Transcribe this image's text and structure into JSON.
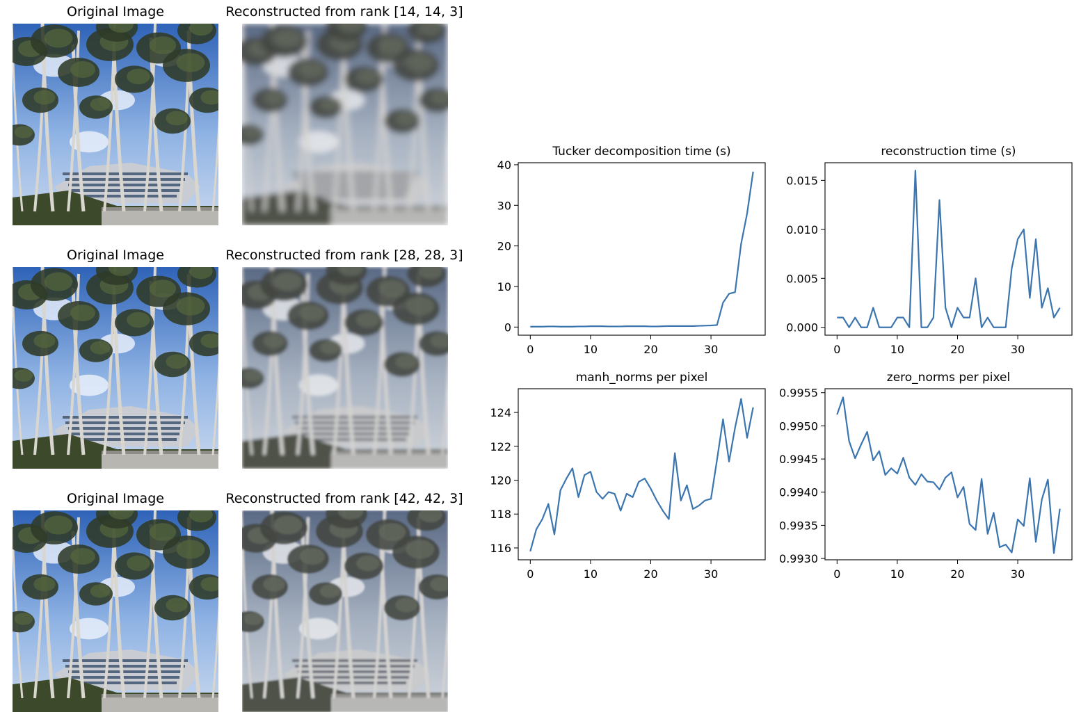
{
  "images": [
    {
      "original_title": "Original Image",
      "recon_title": "Reconstructed from rank [14, 14, 3]",
      "blur": 4.2
    },
    {
      "original_title": "Original Image",
      "recon_title": "Reconstructed from rank [28, 28, 3]",
      "blur": 2.4
    },
    {
      "original_title": "Original Image",
      "recon_title": "Reconstructed from rank [42, 42, 3]",
      "blur": 1.3
    }
  ],
  "chart_data": [
    {
      "type": "line",
      "title": "Tucker decomposition time (s)",
      "xlabel": "",
      "ylabel": "",
      "xlim": [
        -2.0,
        39.0
      ],
      "ylim": [
        -2.0,
        40.5
      ],
      "xticks": [
        0,
        10,
        20,
        30
      ],
      "yticks": [
        0,
        10,
        20,
        30,
        40
      ],
      "ytick_labels": [
        "0",
        "10",
        "20",
        "30",
        "40"
      ],
      "grid": false,
      "color": "#3b75af",
      "x": [
        0,
        1,
        2,
        3,
        4,
        5,
        6,
        7,
        8,
        9,
        10,
        11,
        12,
        13,
        14,
        15,
        16,
        17,
        18,
        19,
        20,
        21,
        22,
        23,
        24,
        25,
        26,
        27,
        28,
        29,
        30,
        31,
        32,
        33,
        34,
        35,
        36,
        37
      ],
      "values": [
        0.1,
        0.1,
        0.1,
        0.15,
        0.15,
        0.1,
        0.1,
        0.1,
        0.15,
        0.15,
        0.2,
        0.2,
        0.2,
        0.15,
        0.15,
        0.15,
        0.2,
        0.2,
        0.2,
        0.2,
        0.15,
        0.15,
        0.2,
        0.25,
        0.25,
        0.25,
        0.25,
        0.25,
        0.3,
        0.35,
        0.4,
        0.5,
        6.0,
        8.2,
        8.6,
        20.5,
        28.0,
        38.3
      ]
    },
    {
      "type": "line",
      "title": "reconstruction time (s)",
      "xlabel": "",
      "ylabel": "",
      "xlim": [
        -2.0,
        39.0
      ],
      "ylim": [
        -0.0008,
        0.0168
      ],
      "xticks": [
        0,
        10,
        20,
        30
      ],
      "yticks": [
        0,
        0.005,
        0.01,
        0.015
      ],
      "ytick_labels": [
        "0.000",
        "0.005",
        "0.010",
        "0.015"
      ],
      "grid": false,
      "color": "#3b75af",
      "x": [
        0,
        1,
        2,
        3,
        4,
        5,
        6,
        7,
        8,
        9,
        10,
        11,
        12,
        13,
        14,
        15,
        16,
        17,
        18,
        19,
        20,
        21,
        22,
        23,
        24,
        25,
        26,
        27,
        28,
        29,
        30,
        31,
        32,
        33,
        34,
        35,
        36,
        37
      ],
      "values": [
        0.001,
        0.001,
        0,
        0.001,
        0,
        0,
        0.002,
        0,
        0,
        0,
        0.001,
        0.001,
        0,
        0.016,
        0,
        0,
        0.001,
        0.013,
        0.002,
        0,
        0.002,
        0.001,
        0.001,
        0.005,
        0,
        0.001,
        0,
        0,
        0,
        0.006,
        0.009,
        0.01,
        0.003,
        0.009,
        0.002,
        0.004,
        0.001,
        0.002
      ]
    },
    {
      "type": "line",
      "title": "manh_norms per pixel",
      "xlabel": "",
      "ylabel": "",
      "xlim": [
        -2.0,
        39.0
      ],
      "ylim": [
        115.3,
        125.4
      ],
      "xticks": [
        0,
        10,
        20,
        30
      ],
      "yticks": [
        116,
        118,
        120,
        122,
        124
      ],
      "ytick_labels": [
        "116",
        "118",
        "120",
        "122",
        "124"
      ],
      "grid": false,
      "color": "#3b75af",
      "x": [
        0,
        1,
        2,
        3,
        4,
        5,
        6,
        7,
        8,
        9,
        10,
        11,
        12,
        13,
        14,
        15,
        16,
        17,
        18,
        19,
        20,
        21,
        22,
        23,
        24,
        25,
        26,
        27,
        28,
        29,
        30,
        31,
        32,
        33,
        34,
        35,
        36,
        37
      ],
      "values": [
        115.8,
        117.1,
        117.7,
        118.6,
        116.8,
        119.4,
        120.1,
        120.7,
        119.0,
        120.3,
        120.5,
        119.3,
        118.9,
        119.3,
        119.2,
        118.2,
        119.2,
        119.0,
        119.9,
        120.1,
        119.5,
        118.8,
        118.2,
        117.7,
        121.6,
        118.8,
        119.7,
        118.3,
        118.5,
        118.8,
        118.9,
        121.2,
        123.6,
        121.1,
        123.1,
        124.8,
        122.5,
        124.3
      ]
    },
    {
      "type": "line",
      "title": "zero_norms per pixel",
      "xlabel": "",
      "ylabel": "",
      "xlim": [
        -2.0,
        39.0
      ],
      "ylim": [
        0.99298,
        0.99556
      ],
      "xticks": [
        0,
        10,
        20,
        30
      ],
      "yticks": [
        0.993,
        0.9935,
        0.994,
        0.9945,
        0.995,
        0.9955
      ],
      "ytick_labels": [
        "0.9930",
        "0.9935",
        "0.9940",
        "0.9945",
        "0.9950",
        "0.9955"
      ],
      "grid": false,
      "color": "#3b75af",
      "x": [
        0,
        1,
        2,
        3,
        4,
        5,
        6,
        7,
        8,
        9,
        10,
        11,
        12,
        13,
        14,
        15,
        16,
        17,
        18,
        19,
        20,
        21,
        22,
        23,
        24,
        25,
        26,
        27,
        28,
        29,
        30,
        31,
        32,
        33,
        34,
        35,
        36,
        37
      ],
      "values": [
        0.99517,
        0.99543,
        0.99477,
        0.99451,
        0.99472,
        0.99491,
        0.99448,
        0.99462,
        0.99426,
        0.99436,
        0.99428,
        0.99452,
        0.99422,
        0.99411,
        0.99427,
        0.99416,
        0.99415,
        0.99404,
        0.99422,
        0.9943,
        0.99392,
        0.99408,
        0.99352,
        0.99343,
        0.9942,
        0.99337,
        0.99369,
        0.99317,
        0.99321,
        0.99309,
        0.99359,
        0.99349,
        0.99421,
        0.99325,
        0.99389,
        0.99419,
        0.99308,
        0.99375
      ]
    }
  ]
}
